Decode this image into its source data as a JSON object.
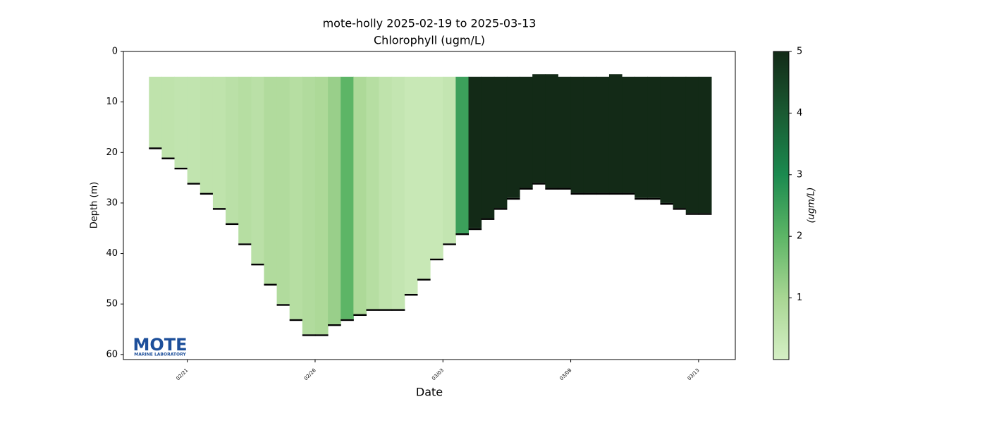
{
  "chart_data": {
    "type": "section",
    "title": "mote-holly 2025-02-19 to 2025-03-13",
    "subtitle": "Chlorophyll (ugm/L)",
    "x_label": "Date",
    "y_label": "Depth (m)",
    "x": [
      "02/19 12:00",
      "02/20 00:00",
      "02/20 12:00",
      "02/21 00:00",
      "02/21 12:00",
      "02/22 00:00",
      "02/22 12:00",
      "02/23 00:00",
      "02/23 12:00",
      "02/24 00:00",
      "02/24 12:00",
      "02/25 00:00",
      "02/25 12:00",
      "02/26 00:00",
      "02/26 12:00",
      "02/27 00:00",
      "02/27 12:00",
      "02/28 00:00",
      "02/28 12:00",
      "03/01 00:00",
      "03/01 12:00",
      "03/02 00:00",
      "03/02 12:00",
      "03/03 00:00",
      "03/03 12:00",
      "03/04 00:00",
      "03/04 12:00",
      "03/05 00:00",
      "03/05 12:00",
      "03/06 00:00",
      "03/06 12:00",
      "03/07 00:00",
      "03/07 12:00",
      "03/08 00:00",
      "03/08 12:00",
      "03/09 00:00",
      "03/09 12:00",
      "03/10 00:00",
      "03/10 12:00",
      "03/11 00:00",
      "03/11 12:00",
      "03/12 00:00",
      "03/12 12:00",
      "03/13 00:00"
    ],
    "depth_top": [
      5,
      5,
      5,
      5,
      5,
      5,
      5,
      5,
      5,
      5,
      5,
      5,
      5,
      5,
      5,
      5,
      5,
      5,
      5,
      5,
      5,
      5,
      5,
      5,
      5,
      5,
      5,
      5,
      5,
      5,
      4.5,
      4.5,
      5,
      5,
      5,
      5,
      4.5,
      5,
      5,
      5,
      5,
      5,
      5,
      5
    ],
    "depth_bottom": [
      19,
      21,
      23,
      26,
      28,
      31,
      34,
      38,
      42,
      46,
      50,
      53,
      56,
      56,
      54,
      53,
      52,
      51,
      51,
      51,
      48,
      45,
      41,
      38,
      36,
      35,
      33,
      31,
      29,
      27,
      26,
      27,
      27,
      28,
      28,
      28,
      28,
      28,
      29,
      29,
      30,
      31,
      32,
      32
    ],
    "values": [
      0.5,
      0.5,
      0.45,
      0.45,
      0.5,
      0.5,
      0.6,
      0.7,
      0.6,
      0.8,
      0.8,
      0.7,
      0.8,
      0.9,
      1.2,
      2.0,
      0.9,
      0.7,
      0.5,
      0.4,
      0.3,
      0.3,
      0.3,
      0.4,
      2.5,
      5,
      5,
      5,
      5,
      5,
      5,
      5,
      5,
      5,
      5,
      5,
      5,
      5,
      5,
      5,
      5,
      5,
      5,
      5
    ],
    "xlim": [
      "02/18 12:00",
      "03/14 10:30"
    ],
    "xticks": [
      "02/21",
      "02/26",
      "03/03",
      "03/08",
      "03/13"
    ],
    "ylim": [
      61,
      0
    ],
    "yticks": [
      0,
      10,
      20,
      30,
      40,
      50,
      60
    ],
    "colorbar": {
      "label": "(ugm/L)",
      "lim": [
        0,
        5
      ],
      "ticks": [
        1,
        2,
        3,
        4,
        5
      ],
      "colors": [
        "#d5efc5",
        "#a8d693",
        "#5db566",
        "#1b8a4f",
        "#1a5a32",
        "#132a17"
      ]
    },
    "logo": {
      "text": "MOTE",
      "subtext": "MARINE LABORATORY"
    }
  }
}
